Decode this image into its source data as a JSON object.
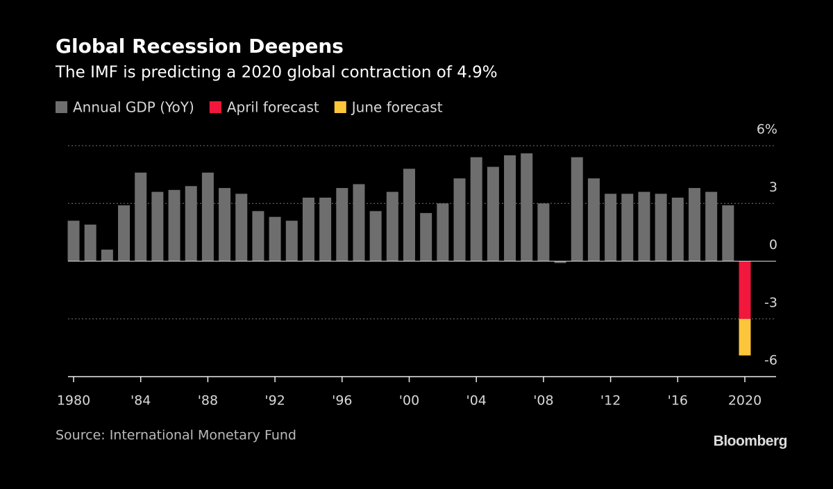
{
  "chart_data": {
    "type": "bar",
    "stacked": true,
    "title": "Global Recession Deepens",
    "subtitle": "The IMF is predicting a 2020 global contraction of 4.9%",
    "source": "Source: International Monetary Fund",
    "brand": "Bloomberg",
    "categories": [
      "1980",
      null,
      null,
      null,
      "'84",
      null,
      null,
      null,
      "'88",
      null,
      null,
      null,
      "'92",
      null,
      null,
      null,
      "'96",
      null,
      null,
      null,
      "'00",
      null,
      null,
      null,
      "'04",
      null,
      null,
      null,
      "'08",
      null,
      null,
      null,
      "'12",
      null,
      null,
      null,
      "'16",
      null,
      null,
      null,
      "2020"
    ],
    "series": [
      {
        "name": "Annual GDP (YoY)",
        "color": "#6e6e6e",
        "values": [
          2.1,
          1.9,
          0.6,
          2.9,
          4.6,
          3.6,
          3.7,
          3.9,
          4.6,
          3.8,
          3.5,
          2.6,
          2.3,
          2.1,
          3.3,
          3.3,
          3.8,
          4.0,
          2.6,
          3.6,
          4.8,
          2.5,
          3.0,
          4.3,
          5.4,
          4.9,
          5.5,
          5.6,
          3.0,
          -0.1,
          5.4,
          4.3,
          3.5,
          3.5,
          3.6,
          3.5,
          3.3,
          3.8,
          3.6,
          2.9,
          null
        ]
      },
      {
        "name": "April forecast",
        "color": "#f2173c",
        "values": [
          null,
          null,
          null,
          null,
          null,
          null,
          null,
          null,
          null,
          null,
          null,
          null,
          null,
          null,
          null,
          null,
          null,
          null,
          null,
          null,
          null,
          null,
          null,
          null,
          null,
          null,
          null,
          null,
          null,
          null,
          null,
          null,
          null,
          null,
          null,
          null,
          null,
          null,
          null,
          null,
          -3.0
        ]
      },
      {
        "name": "June forecast",
        "color": "#fcc63a",
        "values": [
          null,
          null,
          null,
          null,
          null,
          null,
          null,
          null,
          null,
          null,
          null,
          null,
          null,
          null,
          null,
          null,
          null,
          null,
          null,
          null,
          null,
          null,
          null,
          null,
          null,
          null,
          null,
          null,
          null,
          null,
          null,
          null,
          null,
          null,
          null,
          null,
          null,
          null,
          null,
          null,
          -1.9
        ]
      }
    ],
    "ylim": [
      -6,
      6
    ],
    "yticks": [
      {
        "value": 6,
        "label": "6%"
      },
      3,
      0,
      -3,
      -6
    ],
    "grid": true
  }
}
